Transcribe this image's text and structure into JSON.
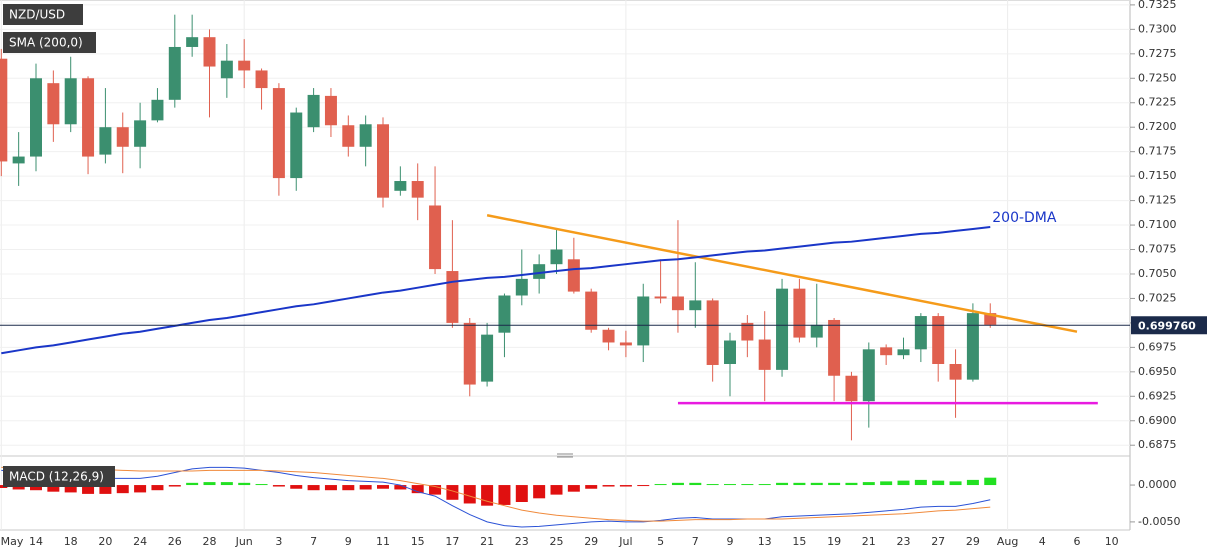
{
  "chart_data": [
    {
      "type": "candlestick",
      "title": "NZD/USD",
      "indicator_label": "SMA (200,0)",
      "categories": [
        "May",
        null,
        "14",
        null,
        "18",
        null,
        "20",
        null,
        "24",
        null,
        "26",
        null,
        "28",
        null,
        "Jun",
        null,
        "3",
        null,
        "7",
        null,
        "9",
        null,
        "11",
        null,
        "15",
        null,
        "17",
        null,
        "21",
        null,
        "23",
        null,
        "25",
        null,
        "29",
        null,
        "Jul",
        null,
        "5",
        null,
        "7",
        null,
        "9",
        null,
        "13",
        null,
        "15",
        null,
        "19",
        null,
        "21",
        null,
        "23",
        null,
        "27",
        null,
        "29",
        null,
        "Aug",
        null,
        "4",
        null,
        "6",
        null,
        "10"
      ],
      "open": [
        0.727,
        0.7163,
        0.717,
        0.7245,
        0.7203,
        0.725,
        0.7172,
        0.72,
        0.718,
        0.7207,
        0.7228,
        0.7282,
        0.7292,
        0.725,
        0.7268,
        0.7258,
        0.724,
        0.7148,
        0.72,
        0.7232,
        0.7202,
        0.718,
        0.7203,
        0.7135,
        0.7145,
        0.712,
        0.7053,
        0.7,
        0.694,
        0.699,
        0.7028,
        0.7045,
        0.706,
        0.7065,
        0.7032,
        0.6993,
        0.698,
        0.6977,
        0.7027,
        0.7027,
        0.7013,
        0.7023,
        0.6958,
        0.7,
        0.6983,
        0.6952,
        0.7035,
        0.6985,
        0.7003,
        0.6946,
        0.692,
        0.6975,
        0.6967,
        0.6973,
        0.7007,
        0.6958,
        0.6942,
        0.701,
        null,
        null,
        null,
        null,
        null,
        null,
        null
      ],
      "high": [
        0.728,
        0.7195,
        0.7265,
        0.7258,
        0.7272,
        0.7252,
        0.724,
        0.7215,
        0.7225,
        0.724,
        0.7315,
        0.7315,
        0.73,
        0.7285,
        0.729,
        0.726,
        0.7245,
        0.722,
        0.724,
        0.724,
        0.7212,
        0.7212,
        0.721,
        0.716,
        0.7163,
        0.716,
        0.7105,
        0.7005,
        0.7,
        0.703,
        0.7075,
        0.707,
        0.7095,
        0.7087,
        0.7035,
        0.6995,
        0.6992,
        0.704,
        0.7065,
        0.7105,
        0.7062,
        0.7025,
        0.699,
        0.7008,
        0.7012,
        0.7045,
        0.7045,
        0.704,
        0.7005,
        0.695,
        0.698,
        0.6978,
        0.6985,
        0.701,
        0.701,
        0.6973,
        0.702,
        0.702,
        null,
        null,
        null,
        null,
        null,
        null,
        null
      ],
      "low": [
        0.715,
        0.714,
        0.7155,
        0.7185,
        0.7195,
        0.7152,
        0.7163,
        0.7153,
        0.7158,
        0.7205,
        0.722,
        0.7272,
        0.721,
        0.723,
        0.724,
        0.7218,
        0.713,
        0.7135,
        0.7195,
        0.719,
        0.717,
        0.716,
        0.7118,
        0.713,
        0.7105,
        0.705,
        0.6995,
        0.6925,
        0.6935,
        0.6965,
        0.7018,
        0.703,
        0.705,
        0.703,
        0.699,
        0.6972,
        0.6965,
        0.696,
        0.702,
        0.699,
        0.6995,
        0.694,
        0.6925,
        0.6965,
        0.692,
        0.6945,
        0.698,
        0.6975,
        0.692,
        0.688,
        0.6893,
        0.6957,
        0.6963,
        0.696,
        0.694,
        0.6903,
        0.694,
        0.6995,
        null,
        null,
        null,
        null,
        null,
        null,
        null
      ],
      "close": [
        0.7165,
        0.717,
        0.725,
        0.7203,
        0.725,
        0.717,
        0.72,
        0.718,
        0.7207,
        0.7228,
        0.7282,
        0.7292,
        0.7262,
        0.7268,
        0.7258,
        0.724,
        0.7148,
        0.7215,
        0.7233,
        0.7202,
        0.718,
        0.7203,
        0.7128,
        0.7145,
        0.7128,
        0.7055,
        0.7,
        0.6937,
        0.6988,
        0.7028,
        0.7045,
        0.706,
        0.7075,
        0.7032,
        0.6993,
        0.698,
        0.6977,
        0.7027,
        0.7025,
        0.7013,
        0.7023,
        0.6957,
        0.6982,
        0.6982,
        0.6952,
        0.7035,
        0.6985,
        0.6998,
        0.6946,
        0.692,
        0.6973,
        0.6967,
        0.6973,
        0.7007,
        0.6958,
        0.6942,
        0.701,
        0.6998,
        null,
        null,
        null,
        null,
        null,
        null,
        null
      ],
      "up_color": "#3b8f6f",
      "down_color": "#e0604f",
      "series": [
        {
          "name": "200-DMA",
          "color": "#1a36c8",
          "values": [
            0.6969,
            0.6972,
            0.6975,
            0.6977,
            0.698,
            0.6983,
            0.6986,
            0.6989,
            0.6991,
            0.6994,
            0.6997,
            0.7,
            0.7003,
            0.7005,
            0.7008,
            0.7011,
            0.7014,
            0.7017,
            0.7019,
            0.7022,
            0.7025,
            0.7028,
            0.7031,
            0.7033,
            0.7036,
            0.7039,
            0.7042,
            0.7044,
            0.7046,
            0.7047,
            0.7049,
            0.7051,
            0.7053,
            0.7055,
            0.7056,
            0.7058,
            0.706,
            0.7062,
            0.7064,
            0.7065,
            0.7067,
            0.7069,
            0.7071,
            0.7073,
            0.7074,
            0.7076,
            0.7078,
            0.708,
            0.7082,
            0.7083,
            0.7085,
            0.7087,
            0.7089,
            0.7091,
            0.7092,
            0.7094,
            0.7096,
            0.7098,
            null,
            null,
            null,
            null,
            null,
            null,
            null
          ]
        }
      ],
      "trendlines": [
        {
          "x": [
            28,
            62
          ],
          "y": [
            0.711,
            0.6991
          ],
          "color": "#f59b1a"
        },
        {
          "x": [
            39,
            63.2
          ],
          "y": [
            0.6918,
            0.6918
          ],
          "color": "#e81be0"
        }
      ],
      "last_price": {
        "value": 0.69976,
        "label": "0.699760"
      },
      "ylim": [
        0.6865,
        0.733
      ],
      "yticks": [
        0.6875,
        {
          "value": 0.69,
          "label": "0.6900"
        },
        0.6925,
        {
          "value": 0.695,
          "label": "0.6950"
        },
        0.6975,
        {
          "value": 0.7,
          "label": "0.7000"
        },
        0.7025,
        {
          "value": 0.705,
          "label": "0.7050"
        },
        0.7075,
        {
          "value": 0.71,
          "label": "0.7100"
        },
        0.7125,
        {
          "value": 0.715,
          "label": "0.7150"
        },
        0.7175,
        {
          "value": 0.72,
          "label": "0.7200"
        },
        0.7225,
        {
          "value": 0.725,
          "label": "0.7250"
        },
        0.7275,
        {
          "value": 0.73,
          "label": "0.7300"
        },
        0.7325
      ],
      "grid": true
    },
    {
      "type": "macd",
      "title": "MACD (12,26,9)",
      "series": [
        {
          "color": "#2b52d6",
          "values": [
            0.002,
            0.0018,
            0.0016,
            0.0014,
            0.0012,
            0.001,
            0.0009,
            0.0009,
            0.0009,
            0.0012,
            0.0017,
            0.0022,
            0.0024,
            0.0024,
            0.0023,
            0.002,
            0.0017,
            0.0013,
            0.001,
            0.0008,
            0.0006,
            0.0005,
            0.0004,
            0,
            -0.0009,
            -0.0015,
            -0.0028,
            -0.004,
            -0.005,
            -0.0055,
            -0.0057,
            -0.0056,
            -0.0054,
            -0.0052,
            -0.005,
            -0.0049,
            -0.005,
            -0.005,
            -0.0048,
            -0.0045,
            -0.0044,
            -0.0046,
            -0.0046,
            -0.0046,
            -0.0046,
            -0.0043,
            -0.0042,
            -0.0041,
            -0.004,
            -0.0039,
            -0.0037,
            -0.0035,
            -0.0033,
            -0.003,
            -0.0029,
            -0.0029,
            -0.0025,
            -0.002,
            null,
            null,
            null,
            null,
            null,
            null,
            null
          ]
        },
        {
          "color": "#f08a3c",
          "values": [
            0.0024,
            0.0024,
            0.0023,
            0.0023,
            0.0022,
            0.0022,
            0.0021,
            0.002,
            0.0019,
            0.0019,
            0.0019,
            0.0019,
            0.002,
            0.002,
            0.002,
            0.002,
            0.0019,
            0.0018,
            0.0017,
            0.0015,
            0.0013,
            0.0011,
            0.0009,
            0.0006,
            0.0002,
            -0.0002,
            -0.0008,
            -0.0015,
            -0.0022,
            -0.0028,
            -0.0034,
            -0.0038,
            -0.0041,
            -0.0043,
            -0.0045,
            -0.0047,
            -0.0048,
            -0.0049,
            -0.0049,
            -0.0048,
            -0.0047,
            -0.0047,
            -0.0047,
            -0.0046,
            -0.0046,
            -0.0046,
            -0.0045,
            -0.0044,
            -0.0043,
            -0.0042,
            -0.0041,
            -0.004,
            -0.0039,
            -0.0037,
            -0.0035,
            -0.0034,
            -0.0032,
            -0.003,
            null,
            null,
            null,
            null,
            null,
            null,
            null
          ]
        }
      ],
      "histogram": [
        -0.0004,
        -0.0006,
        -0.0007,
        -0.0009,
        -0.001,
        -0.0012,
        -0.0012,
        -0.0011,
        -0.001,
        -0.0007,
        -0.0002,
        0.0003,
        0.0004,
        0.0004,
        0.0003,
        0,
        -0.0002,
        -0.0005,
        -0.0007,
        -0.0007,
        -0.0007,
        -0.0006,
        -0.0005,
        -0.0006,
        -0.0011,
        -0.0013,
        -0.002,
        -0.0025,
        -0.0028,
        -0.0027,
        -0.0023,
        -0.0018,
        -0.0013,
        -0.0009,
        -0.0005,
        -0.0002,
        -0.0002,
        -0.0001,
        0.0001,
        0.0003,
        0.0003,
        0.0001,
        0.0001,
        0,
        0,
        0.0003,
        0.0003,
        0.0003,
        0.0003,
        0.0003,
        0.0004,
        0.0005,
        0.0006,
        0.0007,
        0.0006,
        0.0005,
        0.0007,
        0.001,
        null,
        null,
        null,
        null,
        null,
        null,
        null
      ],
      "up_color": "#22e022",
      "down_color": "#e01010",
      "ylim": [
        -0.0061,
        0.0034
      ],
      "yticks": [
        {
          "value": 0,
          "label": "0.0000"
        },
        {
          "value": -0.005,
          "label": "-0.0050"
        }
      ]
    }
  ]
}
